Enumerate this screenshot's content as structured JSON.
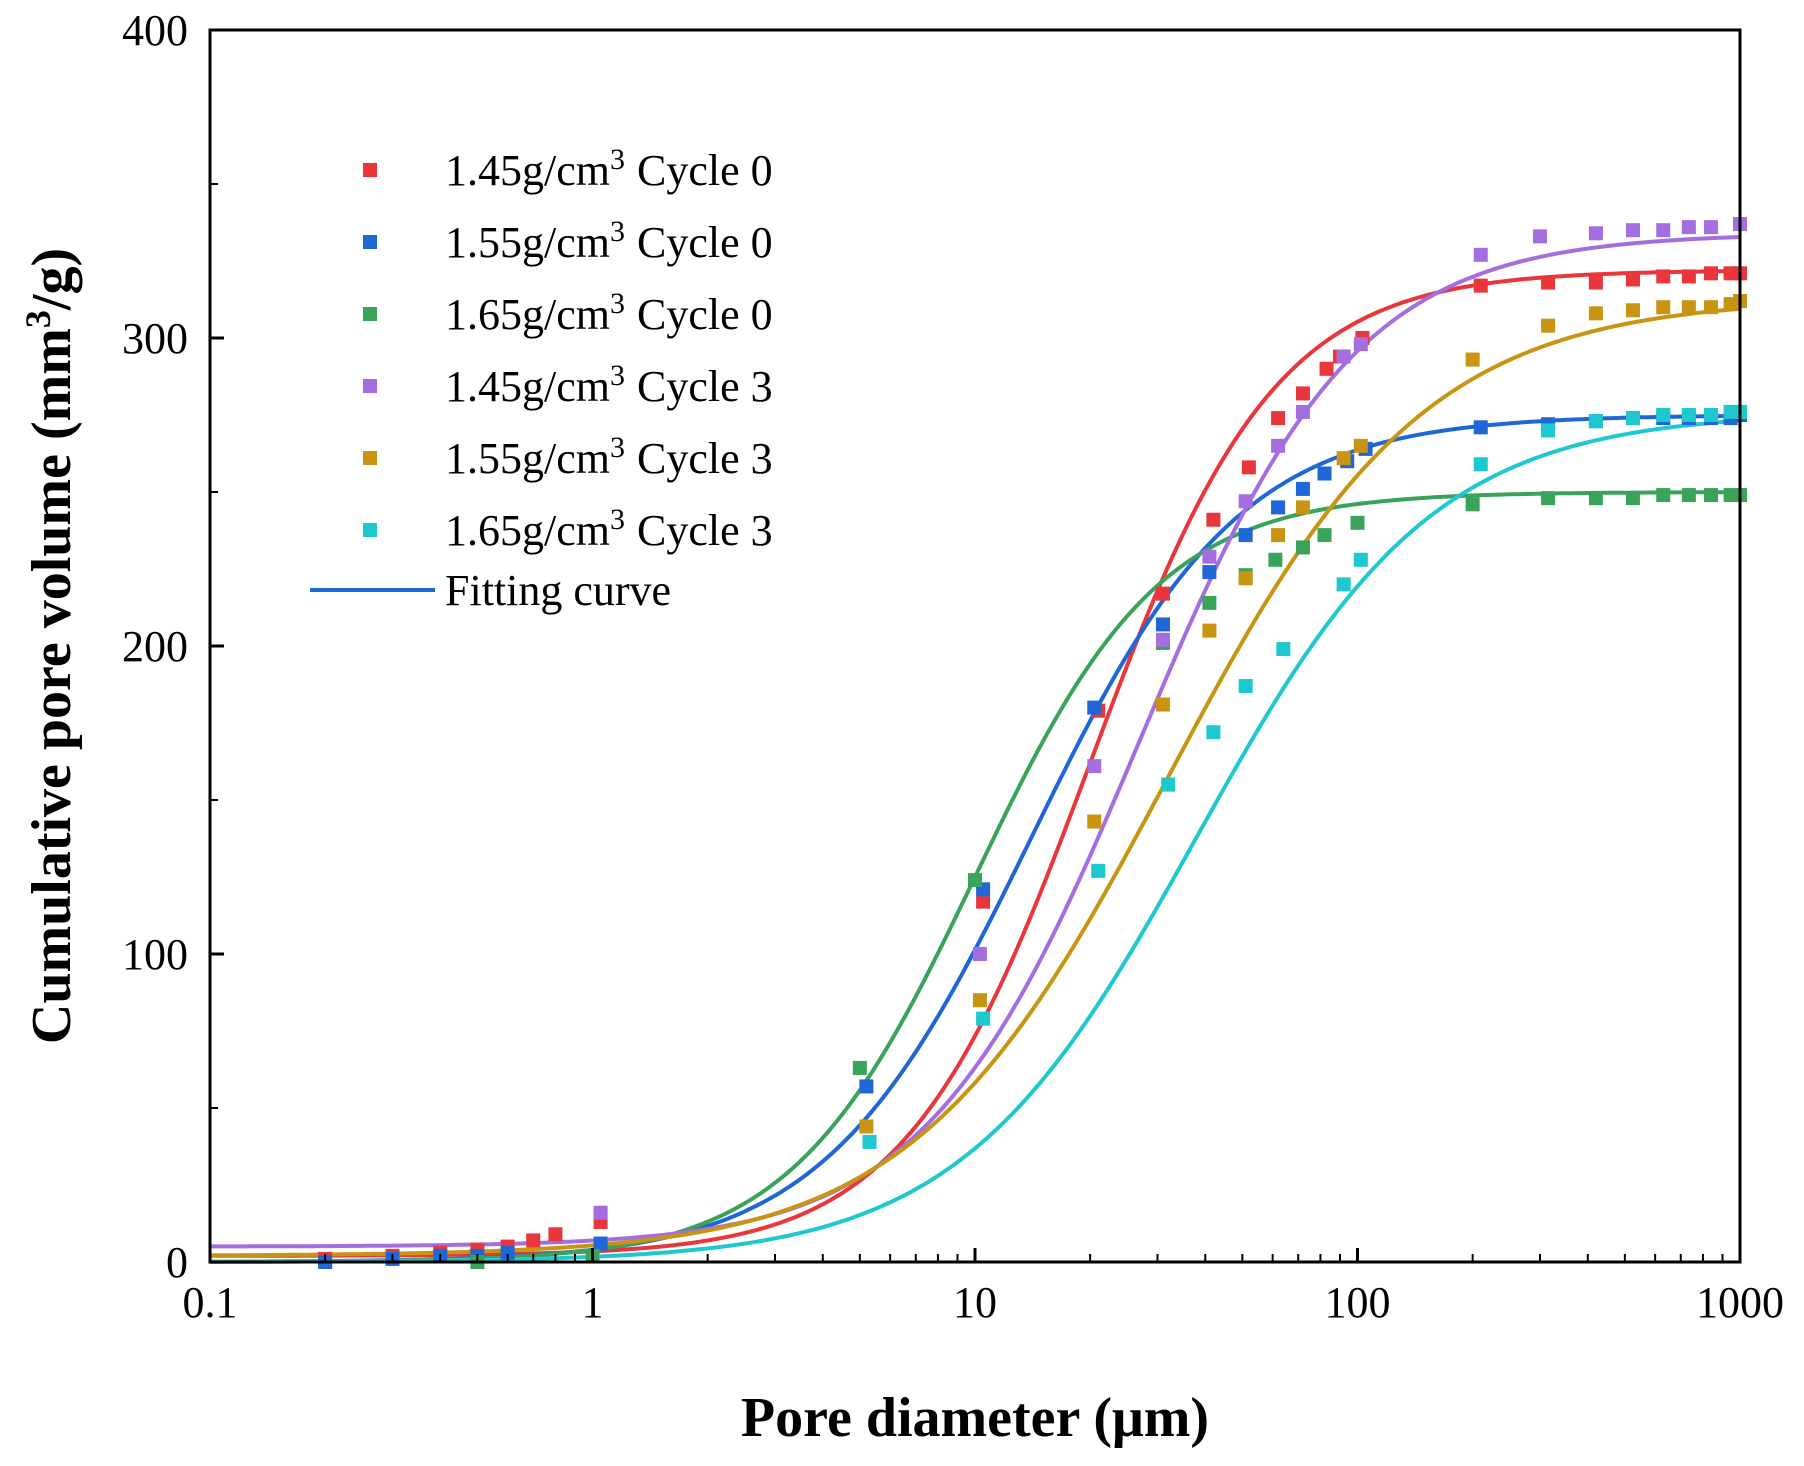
{
  "chart_data": {
    "type": "scatter",
    "title": "",
    "xlabel": "Pore diameter (μm)",
    "ylabel": "Cumulative pore volume (mm³/g)",
    "ylabel_parts": {
      "main": "Cumulative pore volume (mm",
      "sup": "3",
      "tail": "/g)"
    },
    "xscale": "log",
    "xlim": [
      0.1,
      1000
    ],
    "ylim": [
      0,
      400
    ],
    "xticks": [
      0.1,
      1,
      10,
      100,
      1000
    ],
    "xtick_labels": [
      "0.1",
      "1",
      "10",
      "100",
      "1000"
    ],
    "yticks": [
      0,
      100,
      200,
      300,
      400
    ],
    "ytick_labels": [
      "0",
      "100",
      "200",
      "300",
      "400"
    ],
    "grid": false,
    "legend": {
      "location": "top-left",
      "unit": "g/cm",
      "unit_sup": "3",
      "fitting_label": "Fitting curve",
      "fitting_color": "#1f66d6"
    },
    "series": [
      {
        "name": "1.45g/cm3 Cycle 0",
        "density": "1.45",
        "cycle": "Cycle 0",
        "color": "#e8363b",
        "x": [
          0.2,
          0.3,
          0.4,
          0.5,
          0.6,
          0.7,
          0.8,
          1.05,
          10.5,
          21,
          31,
          42,
          52,
          62,
          72,
          83,
          90,
          103,
          210,
          315,
          420,
          525,
          630,
          735,
          840,
          945,
          1000
        ],
        "y": [
          1,
          2,
          3,
          4,
          5,
          7,
          9,
          13,
          117,
          179,
          217,
          241,
          258,
          274,
          282,
          290,
          294,
          300,
          317,
          318,
          318,
          319,
          320,
          320,
          321,
          321,
          321
        ],
        "fit": {
          "v0": 2,
          "vmax": 322,
          "x0": 20,
          "p": 1.8
        }
      },
      {
        "name": "1.55g/cm3 Cycle 0",
        "density": "1.55",
        "cycle": "Cycle 0",
        "color": "#1f66d6",
        "x": [
          0.2,
          0.3,
          0.4,
          0.5,
          0.6,
          1.05,
          5.2,
          10.5,
          20.5,
          31,
          41,
          51,
          62,
          72,
          82,
          94,
          105,
          210,
          315,
          420,
          525,
          630,
          735,
          840,
          945,
          1000
        ],
        "y": [
          0,
          1,
          2,
          2,
          3,
          6,
          57,
          121,
          180,
          207,
          224,
          236,
          245,
          251,
          256,
          260,
          264,
          271,
          272,
          273,
          274,
          274,
          274,
          274,
          274,
          275
        ],
        "fit": {
          "v0": 0,
          "vmax": 275,
          "x0": 14,
          "p": 1.6
        }
      },
      {
        "name": "1.65g/cm3 Cycle 0",
        "density": "1.65",
        "cycle": "Cycle 0",
        "color": "#3aa35a",
        "x": [
          0.5,
          1.0,
          5.0,
          10.0,
          31,
          41,
          51,
          61,
          72,
          82,
          100,
          200,
          315,
          420,
          525,
          630,
          735,
          840,
          945,
          1000
        ],
        "y": [
          0,
          2,
          63,
          124,
          201,
          214,
          223,
          228,
          232,
          236,
          240,
          246,
          248,
          248,
          248,
          249,
          249,
          249,
          249,
          249
        ],
        "fit": {
          "v0": 0,
          "vmax": 250,
          "x0": 10,
          "p": 1.8
        }
      },
      {
        "name": "1.45g/cm3 Cycle 3",
        "density": "1.45",
        "cycle": "Cycle 3",
        "color": "#a46ee0",
        "x": [
          1.05,
          10.3,
          20.5,
          31,
          41,
          51,
          62,
          72,
          92,
          102,
          210,
          300,
          420,
          525,
          630,
          735,
          840,
          1000
        ],
        "y": [
          16,
          100,
          161,
          202,
          229,
          247,
          265,
          276,
          294,
          298,
          327,
          333,
          334,
          335,
          335,
          336,
          336,
          337
        ],
        "fit": {
          "v0": 5,
          "vmax": 334,
          "x0": 27,
          "p": 1.55
        }
      },
      {
        "name": "1.55g/cm3 Cycle 3",
        "density": "1.55",
        "cycle": "Cycle 3",
        "color": "#c89411",
        "x": [
          5.2,
          10.3,
          20.5,
          31,
          41,
          51,
          62,
          72,
          92,
          102,
          200,
          315,
          420,
          525,
          630,
          735,
          840,
          945,
          1000
        ],
        "y": [
          44,
          85,
          143,
          181,
          205,
          222,
          236,
          245,
          261,
          265,
          293,
          304,
          308,
          309,
          310,
          310,
          310,
          311,
          312
        ],
        "fit": {
          "v0": 2,
          "vmax": 313,
          "x0": 32,
          "p": 1.3
        }
      },
      {
        "name": "1.65g/cm3 Cycle 3",
        "density": "1.65",
        "cycle": "Cycle 3",
        "color": "#1ec8cf",
        "x": [
          5.3,
          10.5,
          21,
          32,
          42,
          51,
          64,
          92,
          102,
          210,
          315,
          420,
          525,
          630,
          735,
          840,
          945,
          1000
        ],
        "y": [
          39,
          79,
          127,
          155,
          172,
          187,
          199,
          220,
          228,
          259,
          270,
          273,
          274,
          275,
          275,
          275,
          276,
          276
        ],
        "fit": {
          "v0": 0,
          "vmax": 276,
          "x0": 38,
          "p": 1.4
        }
      }
    ]
  }
}
